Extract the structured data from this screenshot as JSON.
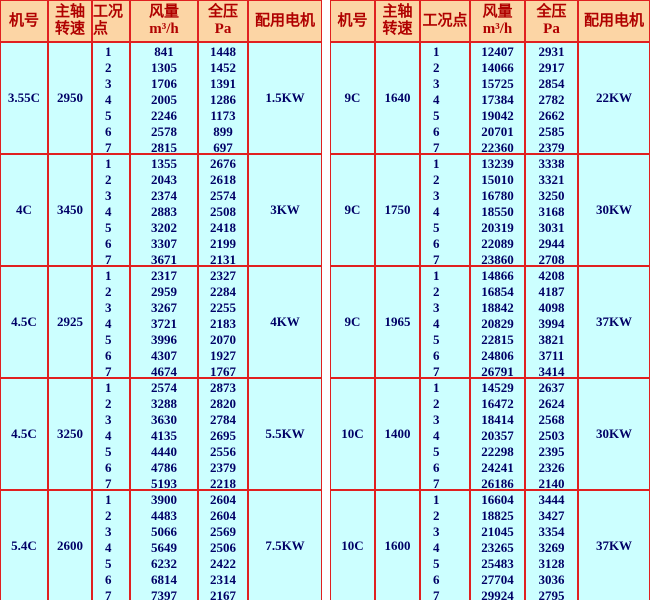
{
  "tables": [
    {
      "header": [
        [
          "机号"
        ],
        [
          "主轴",
          "转速"
        ],
        [
          "工况点"
        ],
        [
          "风量",
          "m³/h"
        ],
        [
          "全压",
          "Pa"
        ],
        [
          "配用电机"
        ]
      ],
      "groups": [
        {
          "model": "3.55C",
          "speed": "2950",
          "points": [
            "1",
            "2",
            "3",
            "4",
            "5",
            "6",
            "7"
          ],
          "flow": [
            "841",
            "1305",
            "1706",
            "2005",
            "2246",
            "2578",
            "2815"
          ],
          "pressure": [
            "1448",
            "1452",
            "1391",
            "1286",
            "1173",
            "899",
            "697"
          ],
          "motor": "1.5KW"
        },
        {
          "model": "4C",
          "speed": "3450",
          "points": [
            "1",
            "2",
            "3",
            "4",
            "5",
            "6",
            "7"
          ],
          "flow": [
            "1355",
            "2043",
            "2374",
            "2883",
            "3202",
            "3307",
            "3671"
          ],
          "pressure": [
            "2676",
            "2618",
            "2574",
            "2508",
            "2418",
            "2199",
            "2131"
          ],
          "motor": "3KW"
        },
        {
          "model": "4.5C",
          "speed": "2925",
          "points": [
            "1",
            "2",
            "3",
            "4",
            "5",
            "6",
            "7"
          ],
          "flow": [
            "2317",
            "2959",
            "3267",
            "3721",
            "3996",
            "4307",
            "4674"
          ],
          "pressure": [
            "2327",
            "2284",
            "2255",
            "2183",
            "2070",
            "1927",
            "1767"
          ],
          "motor": "4KW"
        },
        {
          "model": "4.5C",
          "speed": "3250",
          "points": [
            "1",
            "2",
            "3",
            "4",
            "5",
            "6",
            "7"
          ],
          "flow": [
            "2574",
            "3288",
            "3630",
            "4135",
            "4440",
            "4786",
            "5193"
          ],
          "pressure": [
            "2873",
            "2820",
            "2784",
            "2695",
            "2556",
            "2379",
            "2218"
          ],
          "motor": "5.5KW"
        },
        {
          "model": "5.4C",
          "speed": "2600",
          "points": [
            "1",
            "2",
            "3",
            "4",
            "5",
            "6",
            "7"
          ],
          "flow": [
            "3900",
            "4483",
            "5066",
            "5649",
            "6232",
            "6814",
            "7397"
          ],
          "pressure": [
            "2604",
            "2604",
            "2569",
            "2506",
            "2422",
            "2314",
            "2167"
          ],
          "motor": "7.5KW"
        }
      ]
    },
    {
      "header": [
        [
          "机号"
        ],
        [
          "主轴",
          "转速"
        ],
        [
          "工况点"
        ],
        [
          "风量",
          "m³/h"
        ],
        [
          "全压",
          "Pa"
        ],
        [
          "配用电机"
        ]
      ],
      "groups": [
        {
          "model": "9C",
          "speed": "1640",
          "points": [
            "1",
            "2",
            "3",
            "4",
            "5",
            "6",
            "7"
          ],
          "flow": [
            "12407",
            "14066",
            "15725",
            "17384",
            "19042",
            "20701",
            "22360"
          ],
          "pressure": [
            "2931",
            "2917",
            "2854",
            "2782",
            "2662",
            "2585",
            "2379"
          ],
          "motor": "22KW"
        },
        {
          "model": "9C",
          "speed": "1750",
          "points": [
            "1",
            "2",
            "3",
            "4",
            "5",
            "6",
            "7"
          ],
          "flow": [
            "13239",
            "15010",
            "16780",
            "18550",
            "20319",
            "22089",
            "23860"
          ],
          "pressure": [
            "3338",
            "3321",
            "3250",
            "3168",
            "3031",
            "2944",
            "2708"
          ],
          "motor": "30KW"
        },
        {
          "model": "9C",
          "speed": "1965",
          "points": [
            "1",
            "2",
            "3",
            "4",
            "5",
            "6",
            "7"
          ],
          "flow": [
            "14866",
            "16854",
            "18842",
            "20829",
            "22815",
            "24806",
            "26791"
          ],
          "pressure": [
            "4208",
            "4187",
            "4098",
            "3994",
            "3821",
            "3711",
            "3414"
          ],
          "motor": "37KW"
        },
        {
          "model": "10C",
          "speed": "1400",
          "points": [
            "1",
            "2",
            "3",
            "4",
            "5",
            "6",
            "7"
          ],
          "flow": [
            "14529",
            "16472",
            "18414",
            "20357",
            "22298",
            "24241",
            "26186"
          ],
          "pressure": [
            "2637",
            "2624",
            "2568",
            "2503",
            "2395",
            "2326",
            "2140"
          ],
          "motor": "30KW"
        },
        {
          "model": "10C",
          "speed": "1600",
          "points": [
            "1",
            "2",
            "3",
            "4",
            "5",
            "6",
            "7"
          ],
          "flow": [
            "16604",
            "18825",
            "21045",
            "23265",
            "25483",
            "27704",
            "29924"
          ],
          "pressure": [
            "3444",
            "3427",
            "3354",
            "3269",
            "3128",
            "3036",
            "2795"
          ],
          "motor": "37KW"
        }
      ]
    }
  ]
}
